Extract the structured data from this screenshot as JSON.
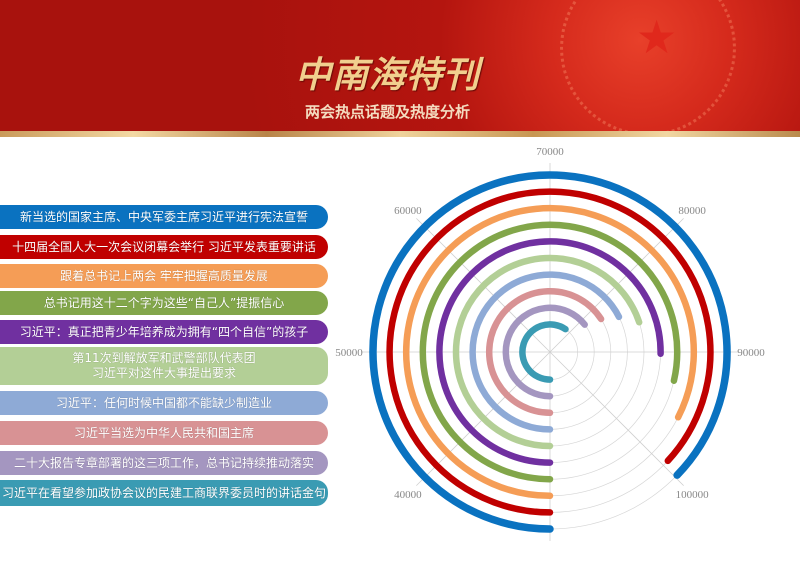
{
  "header": {
    "title": "中南海特刊",
    "subtitle": "两会热点话题及热度分析"
  },
  "chart_data": {
    "type": "radial-bar",
    "angular_axis": {
      "min": 30000,
      "max": 110000,
      "ticks": [
        40000,
        50000,
        60000,
        70000,
        80000,
        90000,
        100000
      ]
    },
    "grid": true,
    "legend": "left",
    "series": [
      {
        "name": "新当选的国家主席、中央军委主席习近平进行宪法宣誓",
        "value": 99800,
        "color": "#0a72c0"
      },
      {
        "name": "十四届全国人大一次会议闭幕会举行 习近平发表重要讲话",
        "value": 99500,
        "color": "#c00000"
      },
      {
        "name": "跟着总书记上两会 牢牢把握高质量发展",
        "value": 96000,
        "color": "#f59d56"
      },
      {
        "name": "总书记用这十二个字为这些“自己人”提振信心",
        "value": 92900,
        "color": "#82a64a"
      },
      {
        "name": "习近平：真正把青少年培养成为拥有“四个自信”的孩子",
        "value": 90200,
        "color": "#7030a0"
      },
      {
        "name": "第11次到解放军和武警部队代表团\n习近平对这件大事提出要求",
        "value": 85900,
        "color": "#b3cf96"
      },
      {
        "name": "习近平：任何时候中国都不能缺少制造业",
        "value": 84000,
        "color": "#8eaad6"
      },
      {
        "name": "习近平当选为中华人民共和国主席",
        "value": 82700,
        "color": "#d89294"
      },
      {
        "name": "二十大报告专章部署的这三项工作，总书记持续推动落实",
        "value": 81500,
        "color": "#a496c0"
      },
      {
        "name": "习近平在看望参加政协会议的民建工商联界委员时的讲话金句",
        "value": 77600,
        "color": "#3a9bb3"
      }
    ]
  }
}
